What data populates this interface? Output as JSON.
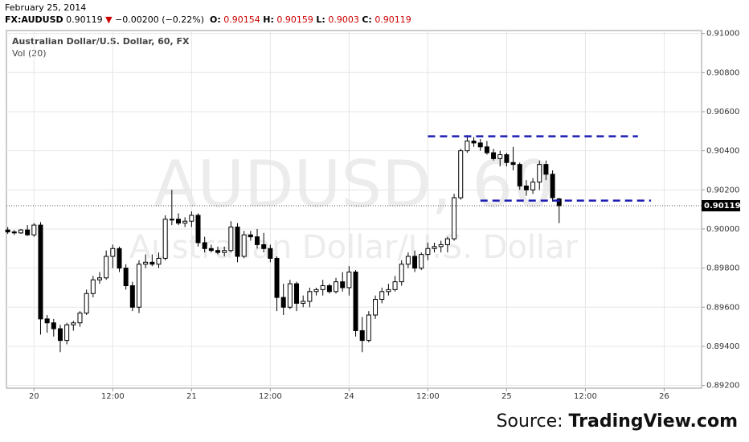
{
  "header": {
    "date": "February 25, 2014",
    "symbol": "FX:AUDUSD",
    "arrow": "▼",
    "change": "−0.00200 (−0.22%)",
    "o_label": "O:",
    "h_label": "H:",
    "l_label": "L:",
    "c_label": "C:"
  },
  "source": {
    "prefix": "Source:",
    "name": "TradingView.com"
  },
  "chart_data": {
    "type": "candlestick",
    "title": "Australian Dollar/U.S. Dollar, 60, FX",
    "subtitle": "Vol (20)",
    "watermark": "AUDUSD, 60",
    "watermark_sub": "Australian Dollar/U.S. Dollar",
    "x": [
      -4,
      -3,
      -2,
      -1,
      0,
      1,
      2,
      3,
      4,
      5,
      6,
      7,
      8,
      9,
      10,
      11,
      12,
      13,
      14,
      15,
      16,
      17,
      18,
      19,
      20,
      21,
      22,
      23,
      24,
      25,
      26,
      27,
      28,
      29,
      30,
      31,
      32,
      33,
      34,
      35,
      36,
      37,
      38,
      39,
      40,
      41,
      42,
      43,
      44,
      45,
      46,
      47,
      48,
      49,
      50,
      51,
      52,
      53,
      54,
      55,
      56,
      57,
      58,
      59,
      60,
      61,
      62,
      63,
      64,
      65,
      66,
      67,
      68,
      69,
      70,
      71,
      72,
      73,
      74,
      75,
      76,
      77,
      78,
      79,
      80
    ],
    "open": [
      0.89995,
      0.89985,
      0.8998,
      0.89995,
      0.8997,
      0.9002,
      0.8954,
      0.8952,
      0.8949,
      0.8943,
      0.8951,
      0.8952,
      0.8957,
      0.8967,
      0.8974,
      0.8975,
      0.8986,
      0.899,
      0.898,
      0.8971,
      0.896,
      0.8982,
      0.8983,
      0.8982,
      0.8985,
      0.9005,
      0.9005,
      0.9003,
      0.9004,
      0.9007,
      0.8993,
      0.899,
      0.8989,
      0.8988,
      0.8989,
      0.9001,
      0.8986,
      0.8997,
      0.8996,
      0.8992,
      0.899,
      0.8985,
      0.8965,
      0.896,
      0.8972,
      0.8962,
      0.8963,
      0.8968,
      0.8969,
      0.8971,
      0.8968,
      0.8973,
      0.897,
      0.8978,
      0.8948,
      0.8943,
      0.8956,
      0.8964,
      0.8968,
      0.8969,
      0.8973,
      0.8982,
      0.8986,
      0.898,
      0.8987,
      0.899,
      0.8991,
      0.8992,
      0.8995,
      0.9016,
      0.904,
      0.9045,
      0.9044,
      0.9042,
      0.9039,
      0.9036,
      0.9038,
      0.9034,
      0.9033,
      0.9022,
      0.902,
      0.9024,
      0.9033,
      0.9028,
      0.90154
    ],
    "high": [
      0.9001,
      0.89995,
      0.9,
      0.9002,
      0.9003,
      0.90035,
      0.8956,
      0.8954,
      0.8951,
      0.8952,
      0.8953,
      0.8958,
      0.8969,
      0.8976,
      0.8978,
      0.8989,
      0.8992,
      0.8991,
      0.8982,
      0.8973,
      0.8984,
      0.8987,
      0.8987,
      0.8988,
      0.9007,
      0.902,
      0.9008,
      0.9006,
      0.9009,
      0.9008,
      0.8996,
      0.8992,
      0.8991,
      0.8991,
      0.9004,
      0.9003,
      0.8999,
      0.8999,
      0.9,
      0.8998,
      0.8992,
      0.8986,
      0.8972,
      0.8974,
      0.8973,
      0.8966,
      0.897,
      0.897,
      0.8974,
      0.8972,
      0.8975,
      0.8978,
      0.8981,
      0.8979,
      0.8955,
      0.8958,
      0.8966,
      0.897,
      0.8972,
      0.8976,
      0.8984,
      0.8988,
      0.8989,
      0.8988,
      0.8993,
      0.8993,
      0.8994,
      0.8996,
      0.9018,
      0.9041,
      0.9048,
      0.9047,
      0.9046,
      0.9045,
      0.9041,
      0.904,
      0.9039,
      0.9042,
      0.9034,
      0.9025,
      0.9026,
      0.9035,
      0.9035,
      0.903,
      0.90159
    ],
    "low": [
      0.89975,
      0.8997,
      0.89975,
      0.89965,
      0.8996,
      0.8946,
      0.8947,
      0.8945,
      0.8937,
      0.8941,
      0.8948,
      0.895,
      0.8956,
      0.8965,
      0.8972,
      0.8974,
      0.898,
      0.8978,
      0.8969,
      0.8958,
      0.8957,
      0.898,
      0.8981,
      0.898,
      0.8984,
      0.9002,
      0.9002,
      0.9001,
      0.9001,
      0.8991,
      0.8988,
      0.8988,
      0.8987,
      0.8986,
      0.8988,
      0.8983,
      0.8985,
      0.8994,
      0.899,
      0.8988,
      0.8983,
      0.8958,
      0.8956,
      0.8959,
      0.8958,
      0.896,
      0.896,
      0.8966,
      0.8966,
      0.8967,
      0.8967,
      0.8968,
      0.8966,
      0.8945,
      0.8937,
      0.8942,
      0.8954,
      0.8962,
      0.8966,
      0.8968,
      0.8971,
      0.898,
      0.8978,
      0.8979,
      0.8984,
      0.8988,
      0.8988,
      0.8988,
      0.8994,
      0.9015,
      0.9039,
      0.9042,
      0.904,
      0.9038,
      0.9035,
      0.9032,
      0.9032,
      0.903,
      0.902,
      0.9017,
      0.9018,
      0.902,
      0.9025,
      0.9014,
      0.9003
    ],
    "close": [
      0.89985,
      0.8998,
      0.89995,
      0.8997,
      0.9002,
      0.8954,
      0.8952,
      0.8949,
      0.8943,
      0.8951,
      0.8952,
      0.8957,
      0.8967,
      0.8974,
      0.8975,
      0.8986,
      0.899,
      0.898,
      0.8971,
      0.896,
      0.8982,
      0.8983,
      0.8982,
      0.8985,
      0.9005,
      0.9005,
      0.9003,
      0.9004,
      0.9007,
      0.8993,
      0.899,
      0.8989,
      0.8988,
      0.8989,
      0.9001,
      0.8986,
      0.8997,
      0.8996,
      0.8992,
      0.899,
      0.8985,
      0.8965,
      0.896,
      0.8972,
      0.8962,
      0.8963,
      0.8968,
      0.8969,
      0.8971,
      0.8968,
      0.8973,
      0.897,
      0.8978,
      0.8948,
      0.8943,
      0.8956,
      0.8964,
      0.8968,
      0.8969,
      0.8973,
      0.8982,
      0.8986,
      0.898,
      0.8987,
      0.899,
      0.8991,
      0.8992,
      0.8995,
      0.9016,
      0.904,
      0.9045,
      0.9044,
      0.9042,
      0.9039,
      0.9036,
      0.9038,
      0.9034,
      0.9033,
      0.9022,
      0.902,
      0.9024,
      0.9033,
      0.9028,
      0.9016,
      0.90119
    ],
    "up_color": "#ffffff",
    "down_color": "#000000",
    "edge_color": "#000000",
    "hlines": [
      {
        "y": 0.90474,
        "x": [
          60,
          92
        ],
        "color": "#1c1cb4"
      },
      {
        "y": 0.90145,
        "x": [
          68,
          94
        ],
        "color": "#1c1cb4"
      }
    ],
    "xlim": [
      -4.2,
      101.7
    ],
    "xticks": [
      {
        "value": 0,
        "label": "20"
      },
      {
        "value": 12,
        "label": "12:00"
      },
      {
        "value": 24,
        "label": "21"
      },
      {
        "value": 36,
        "label": "12:00"
      },
      {
        "value": 48,
        "label": "24"
      },
      {
        "value": 60,
        "label": "12:00"
      },
      {
        "value": 72,
        "label": "25"
      },
      {
        "value": 84,
        "label": "12:00"
      },
      {
        "value": 96,
        "label": "26"
      }
    ],
    "ylim": [
      0.89186,
      0.91015
    ],
    "yticks": [
      {
        "value": 0.892,
        "label": "0.89200"
      },
      {
        "value": 0.894,
        "label": "0.89400"
      },
      {
        "value": 0.896,
        "label": "0.89600"
      },
      {
        "value": 0.898,
        "label": "0.89800"
      },
      {
        "value": 0.9,
        "label": "0.90000"
      },
      {
        "value": 0.902,
        "label": "0.90200"
      },
      {
        "value": 0.904,
        "label": "0.90400"
      },
      {
        "value": 0.906,
        "label": "0.90600"
      },
      {
        "value": 0.908,
        "label": "0.90800"
      },
      {
        "value": 0.91,
        "label": "0.91000"
      }
    ],
    "grid": true
  }
}
